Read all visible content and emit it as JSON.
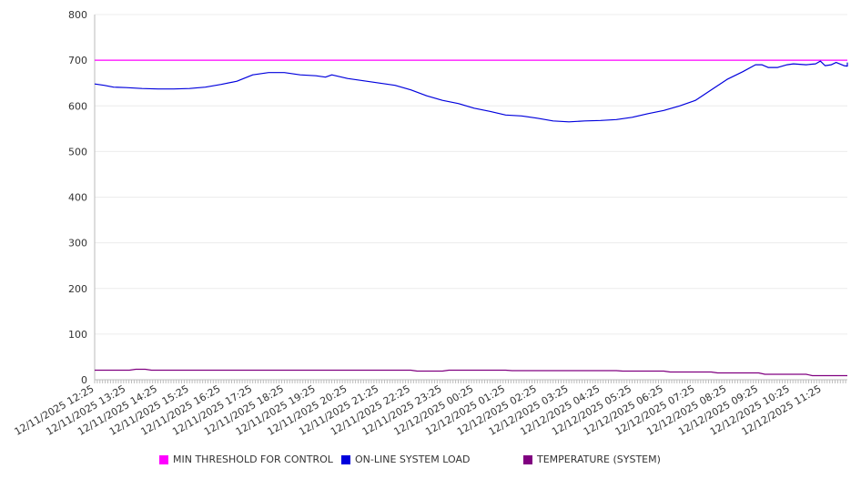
{
  "chart_data": {
    "type": "line",
    "title": "",
    "xlabel": "",
    "ylabel": "",
    "ylim": [
      0,
      800
    ],
    "yticks": [
      0,
      100,
      200,
      300,
      400,
      500,
      600,
      700,
      800
    ],
    "x_unit": "hours since 12/11/2025 12:25",
    "xlim": [
      0,
      23.83
    ],
    "xtick_labels": [
      "12/11/2025 12:25",
      "12/11/2025 13:25",
      "12/11/2025 14:25",
      "12/11/2025 15:25",
      "12/11/2025 16:25",
      "12/11/2025 17:25",
      "12/11/2025 18:25",
      "12/11/2025 19:25",
      "12/11/2025 20:25",
      "12/11/2025 21:25",
      "12/11/2025 22:25",
      "12/11/2025 23:25",
      "12/12/2025 00:25",
      "12/12/2025 01:25",
      "12/12/2025 02:25",
      "12/12/2025 03:25",
      "12/12/2025 04:25",
      "12/12/2025 05:25",
      "12/12/2025 06:25",
      "12/12/2025 07:25",
      "12/12/2025 08:25",
      "12/12/2025 09:25",
      "12/12/2025 10:25",
      "12/12/2025 11:25"
    ],
    "grid": true,
    "legend_position": "bottom",
    "series": [
      {
        "name": "MIN THRESHOLD FOR CONTROL",
        "color": "#ff00ff",
        "points": [
          [
            0,
            700
          ],
          [
            23.83,
            700
          ]
        ]
      },
      {
        "name": "ON-LINE SYSTEM LOAD",
        "color": "#0000dd",
        "points": [
          [
            0,
            648
          ],
          [
            0.3,
            645
          ],
          [
            0.6,
            641
          ],
          [
            1,
            640
          ],
          [
            1.5,
            638
          ],
          [
            2,
            637
          ],
          [
            2.5,
            637
          ],
          [
            3,
            638
          ],
          [
            3.5,
            641
          ],
          [
            4,
            647
          ],
          [
            4.5,
            654
          ],
          [
            5,
            668
          ],
          [
            5.5,
            673
          ],
          [
            6,
            673
          ],
          [
            6.5,
            668
          ],
          [
            7,
            666
          ],
          [
            7.3,
            663
          ],
          [
            7.5,
            668
          ],
          [
            8,
            660
          ],
          [
            8.5,
            655
          ],
          [
            9,
            650
          ],
          [
            9.5,
            645
          ],
          [
            10,
            635
          ],
          [
            10.5,
            622
          ],
          [
            11,
            612
          ],
          [
            11.5,
            605
          ],
          [
            12,
            595
          ],
          [
            12.5,
            588
          ],
          [
            13,
            580
          ],
          [
            13.5,
            578
          ],
          [
            14,
            573
          ],
          [
            14.5,
            567
          ],
          [
            15,
            565
          ],
          [
            15.5,
            567
          ],
          [
            16,
            568
          ],
          [
            16.5,
            570
          ],
          [
            17,
            575
          ],
          [
            17.5,
            583
          ],
          [
            18,
            590
          ],
          [
            18.5,
            600
          ],
          [
            19,
            612
          ],
          [
            19.5,
            635
          ],
          [
            20,
            658
          ],
          [
            20.5,
            675
          ],
          [
            20.9,
            690
          ],
          [
            21.1,
            690
          ],
          [
            21.3,
            684
          ],
          [
            21.6,
            684
          ],
          [
            21.9,
            690
          ],
          [
            22.1,
            692
          ],
          [
            22.5,
            690
          ],
          [
            22.8,
            692
          ],
          [
            22.95,
            698
          ],
          [
            23.1,
            688
          ],
          [
            23.3,
            690
          ],
          [
            23.45,
            695
          ],
          [
            23.7,
            688
          ],
          [
            24.1,
            687
          ],
          [
            24.3,
            692
          ],
          [
            24.5,
            690
          ],
          [
            24.6,
            695
          ]
        ]
      },
      {
        "name": "TEMPERATURE (SYSTEM)",
        "color": "#800080",
        "points": [
          [
            0,
            21
          ],
          [
            1.1,
            21
          ],
          [
            1.3,
            23
          ],
          [
            1.6,
            23
          ],
          [
            1.8,
            21
          ],
          [
            10,
            21
          ],
          [
            10.2,
            19
          ],
          [
            11,
            19
          ],
          [
            11.2,
            21
          ],
          [
            13,
            21
          ],
          [
            13.2,
            20
          ],
          [
            16.5,
            20
          ],
          [
            16.7,
            19
          ],
          [
            18,
            19
          ],
          [
            18.2,
            17
          ],
          [
            19.5,
            17
          ],
          [
            19.7,
            15
          ],
          [
            21,
            15
          ],
          [
            21.2,
            12
          ],
          [
            22.5,
            12
          ],
          [
            22.7,
            9
          ],
          [
            23.83,
            9
          ]
        ]
      }
    ]
  }
}
